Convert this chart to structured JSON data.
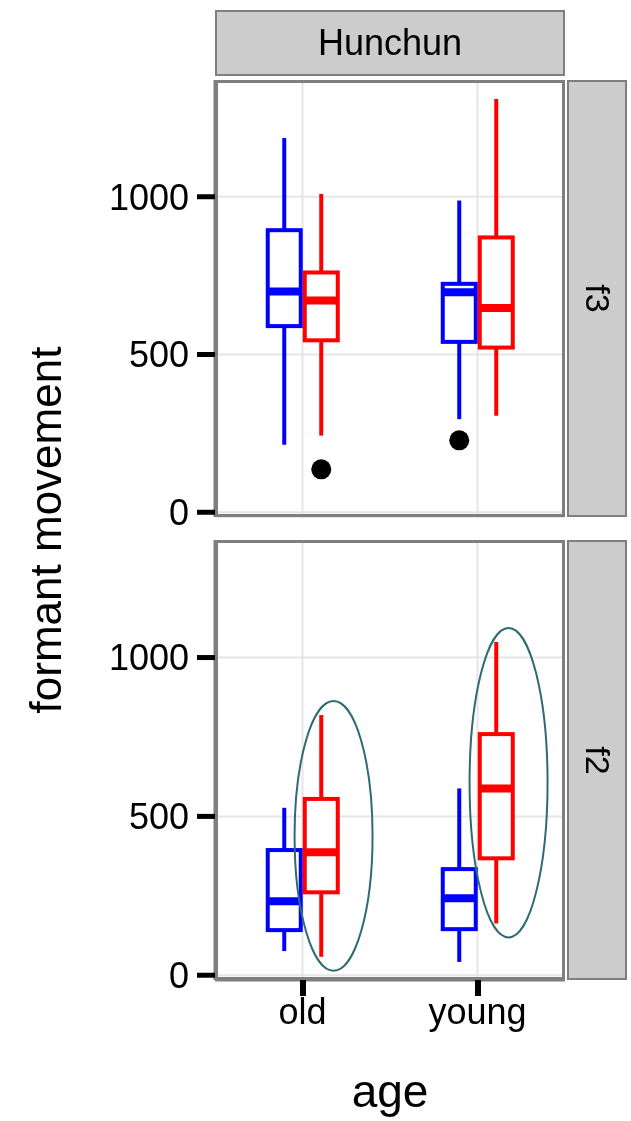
{
  "chart_data": [
    {
      "type": "box",
      "title": "Hunchun",
      "subtitle": "f3",
      "ylabel": "formant movement",
      "series": [
        {
          "color": "#0000ff",
          "boxes": [
            {
              "low": 214,
              "q1": 590,
              "median": 700,
              "q3": 894,
              "high": 1186
            },
            {
              "low": 295,
              "q1": 540,
              "median": 697,
              "q3": 724,
              "high": 988,
              "outliers": [
                228
              ]
            }
          ]
        },
        {
          "color": "#ff0000",
          "boxes": [
            {
              "low": 243,
              "q1": 545,
              "median": 671,
              "q3": 760,
              "high": 1009,
              "outliers": [
                136
              ]
            },
            {
              "low": 306,
              "q1": 522,
              "median": 647,
              "q3": 871,
              "high": 1310
            }
          ]
        }
      ],
      "ylim": [
        -15,
        1370
      ],
      "yticks": [
        0,
        500,
        1000
      ],
      "grid": true,
      "tick_labels": "y"
    },
    {
      "type": "box",
      "subtitle": "f2",
      "xlabel": "age",
      "categories": [
        "old",
        "young"
      ],
      "series": [
        {
          "color": "#0000ff",
          "boxes": [
            {
              "low": 76,
              "q1": 142,
              "median": 233,
              "q3": 394,
              "high": 527
            },
            {
              "low": 42,
              "q1": 145,
              "median": 242,
              "q3": 334,
              "high": 588
            }
          ]
        },
        {
          "color": "#ff0000",
          "boxes": [
            {
              "low": 58,
              "q1": 261,
              "median": 387,
              "q3": 555,
              "high": 819
            },
            {
              "low": 163,
              "q1": 368,
              "median": 588,
              "q3": 759,
              "high": 1049
            }
          ]
        }
      ],
      "ylim": [
        -15,
        1370
      ],
      "yticks": [
        0,
        500,
        1000
      ],
      "grid": true
    }
  ]
}
